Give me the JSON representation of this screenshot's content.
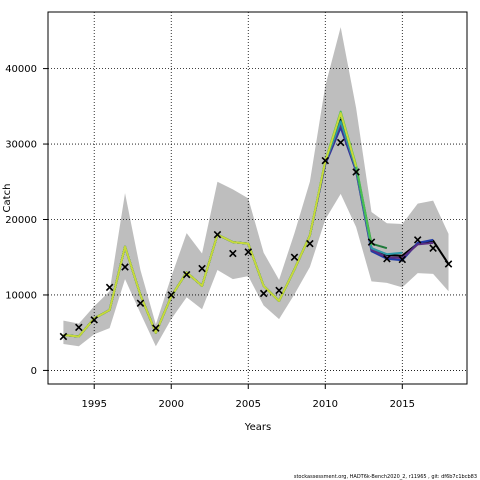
{
  "chart_data": {
    "type": "line",
    "title": "",
    "xlabel": "Years",
    "ylabel": "Catch",
    "xlim": [
      1992,
      2019.2
    ],
    "ylim": [
      -1800,
      47500
    ],
    "x_ticks": [
      1995,
      2000,
      2005,
      2010,
      2015
    ],
    "y_ticks": [
      0,
      10000,
      20000,
      30000,
      40000
    ],
    "x_tick_labels": [
      "1995",
      "2000",
      "2005",
      "2010",
      "2015"
    ],
    "y_tick_labels": [
      "0",
      "10000",
      "20000",
      "30000",
      "40000"
    ],
    "grid": "dotted",
    "legend": "none",
    "footer": "stockassessment.org, HADT6k-Bench2020_2, r11965 , git: df6b7c1bcb83",
    "band": {
      "name": "confidence interval",
      "color": "#bebebe",
      "x": [
        1993,
        1994,
        1995,
        1996,
        1997,
        1998,
        1999,
        2000,
        2001,
        2002,
        2003,
        2004,
        2005,
        2006,
        2007,
        2008,
        2009,
        2010,
        2011,
        2012,
        2013,
        2014,
        2015,
        2016,
        2017,
        2018
      ],
      "lower": [
        3500,
        3200,
        4800,
        5600,
        12100,
        7600,
        3200,
        6800,
        9700,
        8100,
        13300,
        12100,
        12500,
        8600,
        6800,
        10100,
        13700,
        20000,
        23400,
        19000,
        11800,
        11600,
        11000,
        12900,
        12800,
        10500
      ],
      "upper": [
        6600,
        6200,
        8500,
        10500,
        23500,
        13300,
        6100,
        12400,
        18200,
        15500,
        25000,
        24000,
        22800,
        15600,
        12000,
        18200,
        25000,
        37700,
        45500,
        34800,
        21000,
        19500,
        19400,
        22100,
        22500,
        18100
      ]
    },
    "series": [
      {
        "color": "#000000",
        "dash": false,
        "years": [
          1993,
          1994,
          1995,
          1996,
          1997,
          1998,
          1999,
          2000,
          2001,
          2002,
          2003,
          2004,
          2005,
          2006,
          2007,
          2008,
          2009,
          2010,
          2011,
          2012,
          2013,
          2014,
          2015,
          2016,
          2017,
          2018
        ],
        "values": [
          4700,
          4500,
          6900,
          8000,
          16400,
          10000,
          5000,
          9800,
          13000,
          11200,
          18000,
          17000,
          16800,
          11200,
          9200,
          13400,
          17900,
          27500,
          33200,
          26800,
          16200,
          15300,
          15200,
          16800,
          17200,
          14100
        ]
      },
      {
        "color": "#1e3aa8",
        "dash": false,
        "years": [
          1993,
          1994,
          1995,
          1996,
          1997,
          1998,
          1999,
          2000,
          2001,
          2002,
          2003,
          2004,
          2005,
          2006,
          2007,
          2008,
          2009,
          2010,
          2011,
          2012,
          2013,
          2014,
          2015,
          2016,
          2017
        ],
        "values": [
          4700,
          4500,
          6900,
          8000,
          16400,
          10000,
          5000,
          9800,
          13000,
          11200,
          18000,
          17000,
          16800,
          11200,
          9200,
          13400,
          17900,
          27300,
          32200,
          26400,
          15800,
          14800,
          14600,
          16900,
          17300
        ]
      },
      {
        "color": "#5a2d82",
        "dash": false,
        "years": [
          1993,
          1994,
          1995,
          1996,
          1997,
          1998,
          1999,
          2000,
          2001,
          2002,
          2003,
          2004,
          2005,
          2006,
          2007,
          2008,
          2009,
          2010,
          2011,
          2012,
          2013,
          2014,
          2015,
          2016,
          2017
        ],
        "values": [
          4700,
          4500,
          6900,
          8000,
          16400,
          10000,
          5000,
          9800,
          13000,
          11200,
          18000,
          17000,
          16800,
          11200,
          9200,
          13400,
          17900,
          27400,
          32600,
          26500,
          16000,
          15000,
          14900,
          16700,
          16900
        ]
      },
      {
        "color": "#2e9aa8",
        "dash": false,
        "years": [
          1993,
          1994,
          1995,
          1996,
          1997,
          1998,
          1999,
          2000,
          2001,
          2002,
          2003,
          2004,
          2005,
          2006,
          2007,
          2008,
          2009,
          2010,
          2011,
          2012,
          2013,
          2014,
          2015
        ],
        "values": [
          4700,
          4500,
          6900,
          8000,
          16400,
          10000,
          5000,
          9800,
          13000,
          11200,
          18000,
          17000,
          16800,
          11200,
          9200,
          13400,
          17900,
          27600,
          33000,
          26700,
          16200,
          15400,
          15600
        ]
      },
      {
        "color": "#1f7a3a",
        "dash": false,
        "years": [
          1993,
          1994,
          1995,
          1996,
          1997,
          1998,
          1999,
          2000,
          2001,
          2002,
          2003,
          2004,
          2005,
          2006,
          2007,
          2008,
          2009,
          2010,
          2011,
          2012,
          2013,
          2014
        ],
        "values": [
          4700,
          4500,
          6900,
          8000,
          16400,
          10000,
          5000,
          9800,
          13000,
          11200,
          18000,
          17000,
          16800,
          11200,
          9200,
          13400,
          17900,
          27700,
          33900,
          27000,
          16800,
          16200
        ]
      },
      {
        "color": "#4cbf50",
        "dash": false,
        "years": [
          1993,
          1994,
          1995,
          1996,
          1997,
          1998,
          1999,
          2000,
          2001,
          2002,
          2003,
          2004,
          2005,
          2006,
          2007,
          2008,
          2009,
          2010,
          2011,
          2012,
          2013
        ],
        "values": [
          4700,
          4500,
          6900,
          8000,
          16400,
          10000,
          5000,
          9800,
          13000,
          11200,
          18000,
          17000,
          16800,
          11200,
          9200,
          13400,
          17900,
          27800,
          34300,
          27200,
          16600
        ]
      },
      {
        "color": "#c8d93a",
        "dash": false,
        "years": [
          1993,
          1994,
          1995,
          1996,
          1997,
          1998,
          1999,
          2000,
          2001,
          2002,
          2003,
          2004,
          2005,
          2006,
          2007,
          2008,
          2009,
          2010,
          2011,
          2012
        ],
        "values": [
          4700,
          4500,
          6900,
          8000,
          16400,
          10000,
          5000,
          9800,
          13000,
          11200,
          18000,
          17000,
          16800,
          11200,
          9200,
          13400,
          17900,
          27700,
          34100,
          27000
        ]
      },
      {
        "color": "#000000",
        "dash": true,
        "years": [
          2017,
          2018
        ],
        "values": [
          17200,
          14100
        ]
      }
    ],
    "observations": {
      "marker": "x",
      "x": [
        1993,
        1994,
        1995,
        1996,
        1997,
        1998,
        1999,
        2000,
        2001,
        2002,
        2003,
        2004,
        2005,
        2006,
        2007,
        2008,
        2009,
        2010,
        2011,
        2012,
        2013,
        2014,
        2015,
        2016,
        2017,
        2018
      ],
      "y": [
        4500,
        5700,
        6700,
        11000,
        13700,
        8900,
        5600,
        10000,
        12700,
        13500,
        18000,
        15500,
        15700,
        10200,
        10600,
        15000,
        16800,
        27800,
        30200,
        26300,
        17000,
        14800,
        14700,
        17300,
        16200,
        14100
      ]
    }
  }
}
